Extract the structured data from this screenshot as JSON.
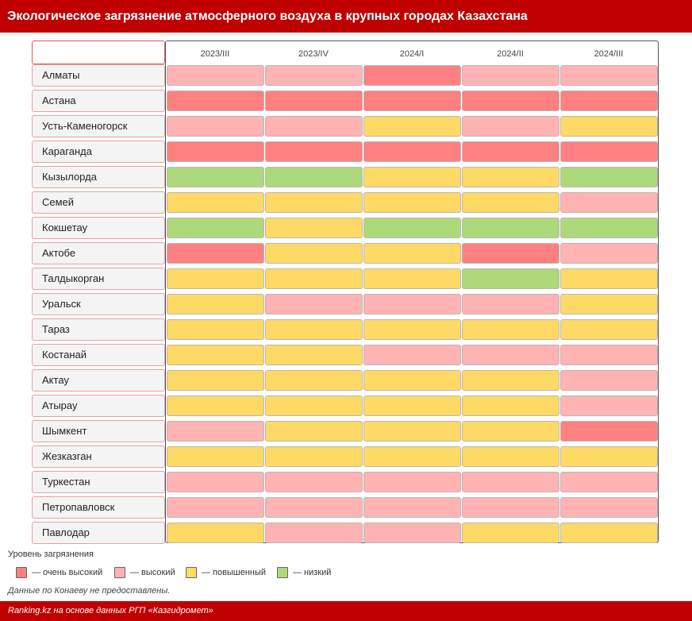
{
  "title": "Экологическое загрязнение атмосферного воздуха в крупных городах Казахстана",
  "colors": {
    "очень высокий": "#ff8080",
    "высокий": "#ffb3b3",
    "повышенный": "#ffd966",
    "низкий": "#add97a"
  },
  "chart_data": {
    "type": "heatmap",
    "title": "Экологическое загрязнение атмосферного воздуха в крупных городах Казахстана",
    "columns": [
      "2023/III",
      "2023/IV",
      "2024/I",
      "2024/II",
      "2024/III"
    ],
    "rows": [
      {
        "city": "Алматы",
        "values": [
          "высокий",
          "высокий",
          "очень высокий",
          "высокий",
          "высокий"
        ]
      },
      {
        "city": "Астана",
        "values": [
          "очень высокий",
          "очень высокий",
          "очень высокий",
          "очень высокий",
          "очень высокий"
        ]
      },
      {
        "city": "Усть-Каменогорск",
        "values": [
          "высокий",
          "высокий",
          "повышенный",
          "высокий",
          "повышенный"
        ]
      },
      {
        "city": "Караганда",
        "values": [
          "очень высокий",
          "очень высокий",
          "очень высокий",
          "очень высокий",
          "очень высокий"
        ]
      },
      {
        "city": "Кызылорда",
        "values": [
          "низкий",
          "низкий",
          "повышенный",
          "повышенный",
          "низкий"
        ]
      },
      {
        "city": "Семей",
        "values": [
          "повышенный",
          "повышенный",
          "повышенный",
          "повышенный",
          "высокий"
        ]
      },
      {
        "city": "Кокшетау",
        "values": [
          "низкий",
          "повышенный",
          "низкий",
          "низкий",
          "низкий"
        ]
      },
      {
        "city": "Актобе",
        "values": [
          "очень высокий",
          "повышенный",
          "повышенный",
          "очень высокий",
          "высокий"
        ]
      },
      {
        "city": "Талдыкорган",
        "values": [
          "повышенный",
          "повышенный",
          "повышенный",
          "низкий",
          "повышенный"
        ]
      },
      {
        "city": "Уральск",
        "values": [
          "повышенный",
          "высокий",
          "высокий",
          "высокий",
          "повышенный"
        ]
      },
      {
        "city": "Тараз",
        "values": [
          "повышенный",
          "повышенный",
          "повышенный",
          "повышенный",
          "повышенный"
        ]
      },
      {
        "city": "Костанай",
        "values": [
          "повышенный",
          "повышенный",
          "высокий",
          "высокий",
          "высокий"
        ]
      },
      {
        "city": "Актау",
        "values": [
          "повышенный",
          "повышенный",
          "повышенный",
          "повышенный",
          "высокий"
        ]
      },
      {
        "city": "Атырау",
        "values": [
          "повышенный",
          "повышенный",
          "повышенный",
          "повышенный",
          "высокий"
        ]
      },
      {
        "city": "Шымкент",
        "values": [
          "высокий",
          "повышенный",
          "повышенный",
          "повышенный",
          "очень высокий"
        ]
      },
      {
        "city": "Жезказган",
        "values": [
          "повышенный",
          "повышенный",
          "повышенный",
          "повышенный",
          "повышенный"
        ]
      },
      {
        "city": "Туркестан",
        "values": [
          "высокий",
          "высокий",
          "высокий",
          "высокий",
          "высокий"
        ]
      },
      {
        "city": "Петропавловск",
        "values": [
          "высокий",
          "высокий",
          "высокий",
          "высокий",
          "высокий"
        ]
      },
      {
        "city": "Павлодар",
        "values": [
          "повышенный",
          "высокий",
          "высокий",
          "повышенный",
          "повышенный"
        ]
      }
    ]
  },
  "legend": {
    "title": "Уровень загрязнения",
    "items": [
      {
        "level": "очень высокий",
        "label": "— очень высокий"
      },
      {
        "level": "высокий",
        "label": "— высокий"
      },
      {
        "level": "повышенный",
        "label": "— повышенный"
      },
      {
        "level": "низкий",
        "label": "— низкий"
      }
    ]
  },
  "note": "Данные по Конаеву не предоставлены.",
  "footer": "Ranking.kz на основе данных РГП «Казгидромет»"
}
